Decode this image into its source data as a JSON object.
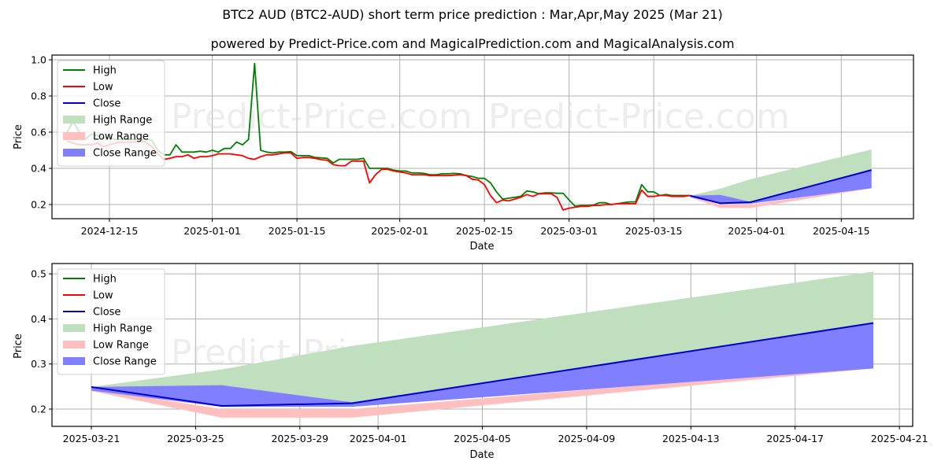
{
  "header": {
    "title": "BTC2 AUD (BTC2-AUD) short term price prediction : Mar,Apr,May 2025 (Mar 21)",
    "subtitle": "powered by Predict-Price.com and MagicalPrediction.com and MagicalAnalysis.com"
  },
  "watermark": "Predict-Price.com",
  "colors": {
    "high": "#008000",
    "low": "#ff0000",
    "close": "#0000cc",
    "high_range": "#bfdfbf",
    "low_range": "#ffbfbf",
    "close_range": "#7f7fff"
  },
  "legend": {
    "items": [
      {
        "label": "High",
        "kind": "line",
        "color": "#008000"
      },
      {
        "label": "Low",
        "kind": "line",
        "color": "#ff0000"
      },
      {
        "label": "Close",
        "kind": "line",
        "color": "#0000cc"
      },
      {
        "label": "High Range",
        "kind": "patch",
        "color": "#bfdfbf"
      },
      {
        "label": "Low Range",
        "kind": "patch",
        "color": "#ffbfbf"
      },
      {
        "label": "Close Range",
        "kind": "patch",
        "color": "#7f7fff"
      }
    ]
  },
  "chart_data": [
    {
      "type": "line",
      "title": "BTC2 AUD (BTC2-AUD) short term price prediction : Mar,Apr,May 2025 (Mar 21)",
      "xlabel": "Date",
      "ylabel": "Price",
      "ylim": [
        0.13,
        1.02
      ],
      "yticks": [
        "0.2",
        "0.4",
        "0.6",
        "0.8",
        "1.0"
      ],
      "xticks": [
        "2024-12-15",
        "2025-01-01",
        "2025-01-15",
        "2025-02-01",
        "2025-02-15",
        "2025-03-01",
        "2025-03-15",
        "2025-04-01",
        "2025-04-15"
      ],
      "grid": true,
      "legend_position": "upper left",
      "history_x_days_from_2024_12_08": [
        0,
        1,
        2,
        3,
        4,
        5,
        6,
        7,
        8,
        9,
        10,
        11,
        12,
        13,
        14,
        15,
        16,
        17,
        18,
        19,
        20,
        21,
        22,
        23,
        24,
        25,
        26,
        27,
        28,
        29,
        30,
        31,
        32,
        33,
        34,
        35,
        36,
        37,
        38,
        39,
        40,
        41,
        42,
        43,
        44,
        45,
        46,
        47,
        48,
        49,
        50,
        51,
        52,
        53,
        54,
        55,
        56,
        57,
        58,
        59,
        60,
        61,
        62,
        63,
        64,
        65,
        66,
        67,
        68,
        69,
        70,
        71,
        72,
        73,
        74,
        75,
        76,
        77,
        78,
        79,
        80,
        81,
        82,
        83,
        84,
        85,
        86,
        87,
        88,
        89,
        90,
        91,
        92,
        93,
        94,
        95,
        96,
        97,
        98,
        99,
        100,
        101,
        102,
        103
      ],
      "series": [
        {
          "name": "High",
          "values": [
            0.6,
            0.66,
            0.6,
            0.56,
            0.59,
            0.58,
            0.57,
            0.57,
            0.56,
            0.56,
            0.56,
            0.56,
            0.56,
            0.56,
            0.555,
            0.5,
            0.475,
            0.475,
            0.53,
            0.49,
            0.49,
            0.49,
            0.495,
            0.49,
            0.5,
            0.49,
            0.51,
            0.51,
            0.545,
            0.53,
            0.56,
            0.98,
            0.5,
            0.49,
            0.485,
            0.49,
            0.49,
            0.492,
            0.47,
            0.47,
            0.47,
            0.46,
            0.458,
            0.455,
            0.43,
            0.45,
            0.45,
            0.45,
            0.45,
            0.455,
            0.4,
            0.4,
            0.4,
            0.4,
            0.39,
            0.385,
            0.385,
            0.375,
            0.375,
            0.372,
            0.365,
            0.365,
            0.37,
            0.37,
            0.372,
            0.37,
            0.36,
            0.355,
            0.345,
            0.345,
            0.32,
            0.27,
            0.23,
            0.235,
            0.24,
            0.245,
            0.275,
            0.27,
            0.26,
            0.265,
            0.265,
            0.262,
            0.262,
            0.225,
            0.19,
            0.195,
            0.195,
            0.197,
            0.21,
            0.21,
            0.2,
            0.205,
            0.21,
            0.215,
            0.215,
            0.31,
            0.27,
            0.27,
            0.25,
            0.255,
            0.25,
            0.25,
            0.25,
            0.25
          ]
        },
        {
          "name": "Low",
          "values": [
            0.55,
            0.54,
            0.53,
            0.53,
            0.53,
            0.54,
            0.52,
            0.53,
            0.54,
            0.545,
            0.545,
            0.545,
            0.55,
            0.545,
            0.52,
            0.48,
            0.45,
            0.455,
            0.465,
            0.465,
            0.475,
            0.455,
            0.465,
            0.465,
            0.47,
            0.48,
            0.48,
            0.48,
            0.475,
            0.47,
            0.455,
            0.45,
            0.465,
            0.475,
            0.475,
            0.48,
            0.485,
            0.485,
            0.455,
            0.46,
            0.46,
            0.455,
            0.448,
            0.445,
            0.42,
            0.415,
            0.415,
            0.44,
            0.44,
            0.44,
            0.32,
            0.365,
            0.395,
            0.395,
            0.385,
            0.38,
            0.375,
            0.365,
            0.365,
            0.365,
            0.36,
            0.36,
            0.36,
            0.36,
            0.362,
            0.365,
            0.36,
            0.34,
            0.335,
            0.31,
            0.25,
            0.21,
            0.225,
            0.22,
            0.23,
            0.24,
            0.255,
            0.245,
            0.26,
            0.26,
            0.26,
            0.24,
            0.17,
            0.18,
            0.185,
            0.19,
            0.19,
            0.195,
            0.195,
            0.2,
            0.2,
            0.205,
            0.205,
            0.205,
            0.205,
            0.28,
            0.245,
            0.245,
            0.25,
            0.25,
            0.245,
            0.245,
            0.245,
            0.25
          ]
        }
      ],
      "forecast": {
        "x": [
          "2025-03-21",
          "2025-03-26",
          "2025-03-31",
          "2025-04-20"
        ],
        "close": [
          0.249,
          0.207,
          0.213,
          0.391
        ],
        "high_range_top": [
          0.249,
          0.288,
          0.34,
          0.505
        ],
        "close_range_top": [
          0.249,
          0.253,
          0.215,
          0.391
        ],
        "close_range_bottom": [
          0.241,
          0.205,
          0.205,
          0.29
        ],
        "low_range_top": [
          0.245,
          0.2,
          0.2,
          0.295
        ],
        "low_range_bottom": [
          0.24,
          0.181,
          0.181,
          0.29
        ]
      }
    },
    {
      "type": "area",
      "title": "Forecast detail",
      "xlabel": "Date",
      "ylabel": "Price",
      "ylim": [
        0.163,
        0.525
      ],
      "yticks": [
        "0.2",
        "0.3",
        "0.4",
        "0.5"
      ],
      "xticks": [
        "2025-03-21",
        "2025-03-25",
        "2025-03-29",
        "2025-04-01",
        "2025-04-05",
        "2025-04-09",
        "2025-04-13",
        "2025-04-17",
        "2025-04-21"
      ],
      "grid": true,
      "legend_position": "upper left",
      "x": [
        "2025-03-21",
        "2025-03-26",
        "2025-03-31",
        "2025-04-20"
      ],
      "series": [
        {
          "name": "Close",
          "values": [
            0.249,
            0.207,
            0.213,
            0.391
          ]
        },
        {
          "name": "High Range",
          "upper": [
            0.249,
            0.288,
            0.34,
            0.505
          ],
          "lower": [
            0.249,
            0.207,
            0.213,
            0.391
          ]
        },
        {
          "name": "Close Range",
          "upper": [
            0.249,
            0.253,
            0.215,
            0.391
          ],
          "lower": [
            0.241,
            0.205,
            0.205,
            0.29
          ]
        },
        {
          "name": "Low Range",
          "upper": [
            0.245,
            0.2,
            0.2,
            0.295
          ],
          "lower": [
            0.24,
            0.181,
            0.181,
            0.29
          ]
        }
      ]
    }
  ]
}
